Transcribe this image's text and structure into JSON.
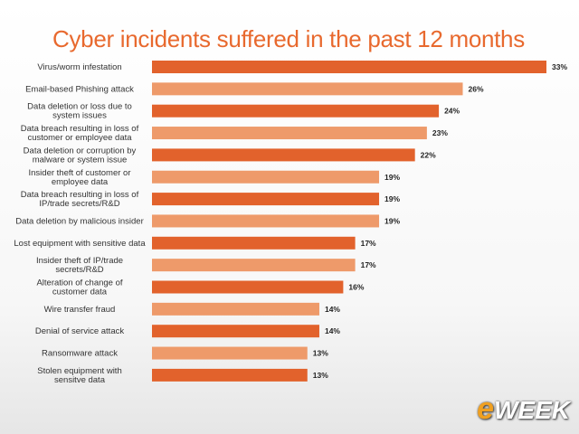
{
  "brand": {
    "logo_text": "WEEK",
    "logo_prefix": "e"
  },
  "chart_data": {
    "type": "bar",
    "orientation": "horizontal",
    "title": "Cyber incidents suffered in the past 12 months",
    "xlabel": "",
    "ylabel": "",
    "xlim": [
      0,
      33
    ],
    "grid": false,
    "legend": "none",
    "categories": [
      [
        "Virus/worm infestation"
      ],
      [
        "Email-based Phishing attack"
      ],
      [
        "Data deletion or loss due to",
        "system issues"
      ],
      [
        "Data breach resulting in loss of",
        "customer or employee data"
      ],
      [
        "Data deletion or corruption by",
        "malware or system issue"
      ],
      [
        "Insider theft of customer or",
        "employee data"
      ],
      [
        "Data breach resulting in loss of",
        "IP/trade secrets/R&D"
      ],
      [
        "Data deletion by malicious insider"
      ],
      [
        "Lost equipment with sensitive data"
      ],
      [
        "Insider theft of IP/trade",
        "secrets/R&D"
      ],
      [
        "Alteration of change of",
        "customer data"
      ],
      [
        "Wire transfer fraud"
      ],
      [
        "Denial of service attack"
      ],
      [
        "Ransomware attack"
      ],
      [
        "Stolen equipment with",
        "sensitve data"
      ]
    ],
    "values": [
      33,
      26,
      24,
      23,
      22,
      19,
      19,
      19,
      17,
      17,
      16,
      14,
      14,
      13,
      13
    ],
    "value_labels": [
      "33%",
      "26%",
      "24%",
      "23%",
      "22%",
      "19%",
      "19%",
      "19%",
      "17%",
      "17%",
      "16%",
      "14%",
      "14%",
      "13%",
      "13%"
    ],
    "colors": [
      "#e2622c",
      "#ee9a6a"
    ]
  }
}
